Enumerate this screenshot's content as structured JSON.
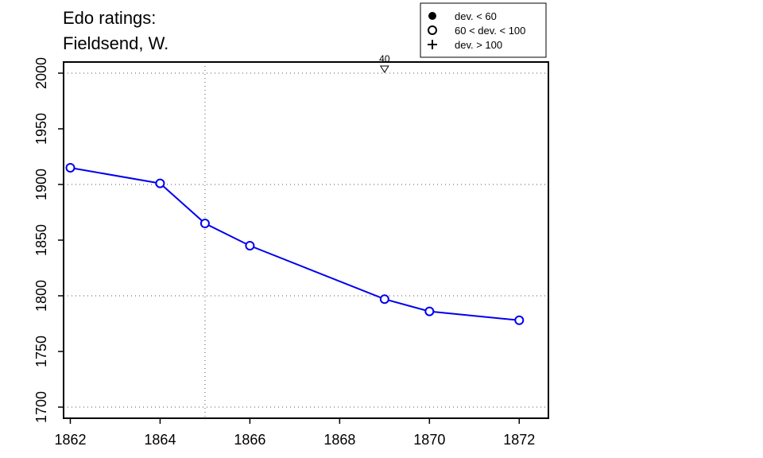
{
  "chart_data": {
    "type": "line",
    "title_lines": [
      "Edo ratings:",
      "Fieldsend, W."
    ],
    "xlabel": "",
    "ylabel": "",
    "x_ticks": [
      1862,
      1864,
      1866,
      1868,
      1870,
      1872
    ],
    "y_ticks": [
      1700,
      1750,
      1800,
      1850,
      1900,
      1950,
      2000
    ],
    "xlim": [
      1861.85,
      1872.65
    ],
    "ylim": [
      1690,
      2010
    ],
    "grid": {
      "x_vertical_at": [
        1865
      ],
      "y_horizontal_at": [
        1700,
        1800,
        1900,
        2000
      ],
      "style": "dotted"
    },
    "series": [
      {
        "color": "#0000ee",
        "marker": "open-circle",
        "x": [
          1862,
          1864,
          1865,
          1866,
          1869,
          1870,
          1872
        ],
        "y": [
          1915,
          1901,
          1865,
          1845,
          1797,
          1786,
          1778
        ]
      }
    ],
    "annotations": [
      {
        "x": 1869,
        "y": 2000,
        "text": "40",
        "marker": "down-triangle-open"
      }
    ],
    "legend": {
      "position": "top-right",
      "entries": [
        {
          "marker": "filled-circle",
          "label": "dev. < 60"
        },
        {
          "marker": "open-circle",
          "label": "60 < dev. < 100"
        },
        {
          "marker": "plus",
          "label": "dev. > 100"
        }
      ]
    }
  }
}
